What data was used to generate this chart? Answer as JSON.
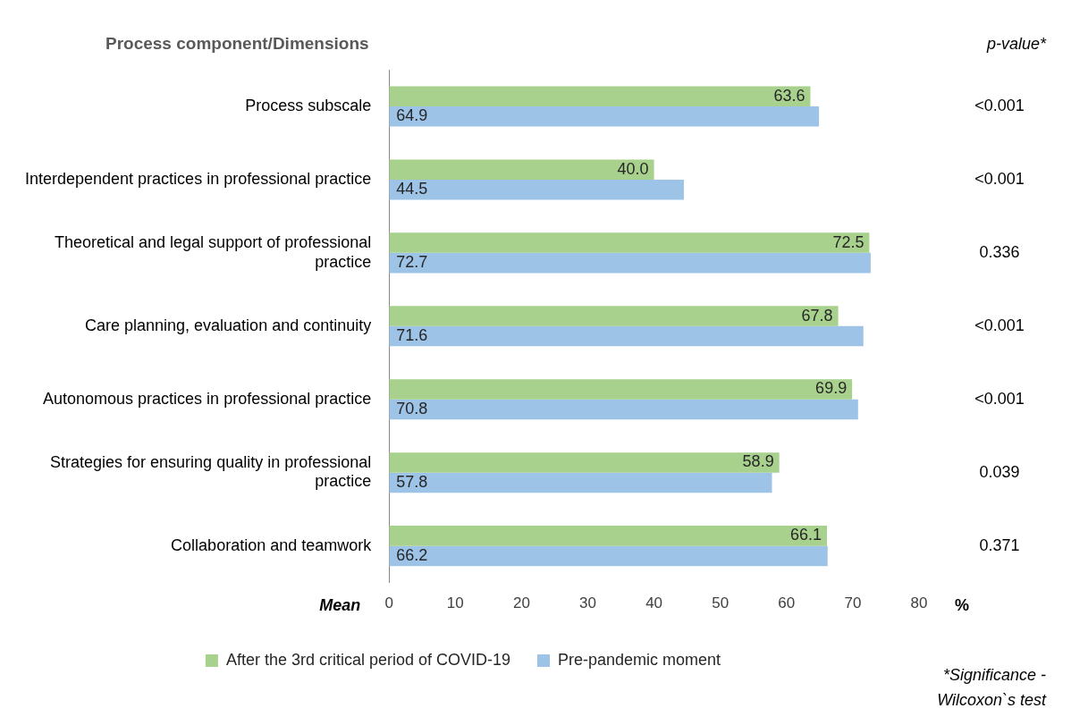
{
  "chart_data": {
    "type": "bar",
    "orientation": "horizontal",
    "title": "Process component/Dimensions",
    "xlabel": "%",
    "categories": [
      "Process subscale",
      "Interdependent practices in professional practice",
      "Theoretical and legal support of professional practice",
      "Care planning, evaluation and continuity",
      "Autonomous practices in professional practice",
      "Strategies for ensuring quality in professional practice",
      "Collaboration and teamwork"
    ],
    "series": [
      {
        "name": "After the 3rd critical period of COVID-19",
        "color": "#a9d18e",
        "values": [
          63.6,
          40.0,
          72.5,
          67.8,
          69.9,
          58.9,
          66.1
        ],
        "value_labels": [
          "63.6",
          "40.0",
          "72.5",
          "67.8",
          "69.9",
          "58.9",
          "66.1"
        ]
      },
      {
        "name": "Pre-pandemic moment",
        "color": "#9dc3e6",
        "values": [
          64.9,
          44.5,
          72.7,
          71.6,
          70.8,
          57.8,
          66.2
        ],
        "value_labels": [
          "64.9",
          "44.5",
          "72.7",
          "71.6",
          "70.8",
          "57.8",
          "66.2"
        ]
      }
    ],
    "xlim": [
      0,
      80
    ],
    "xticks": [
      0,
      10,
      20,
      30,
      40,
      50,
      60,
      70,
      80
    ],
    "grid": false,
    "legend": "bottom",
    "annotations": [
      "<0.001",
      "<0.001",
      "0.336",
      "<0.001",
      "<0.001",
      "0.039",
      "0.371",
      "Mean",
      "p-value*",
      "*Significance - Wilcoxon`s test"
    ]
  }
}
